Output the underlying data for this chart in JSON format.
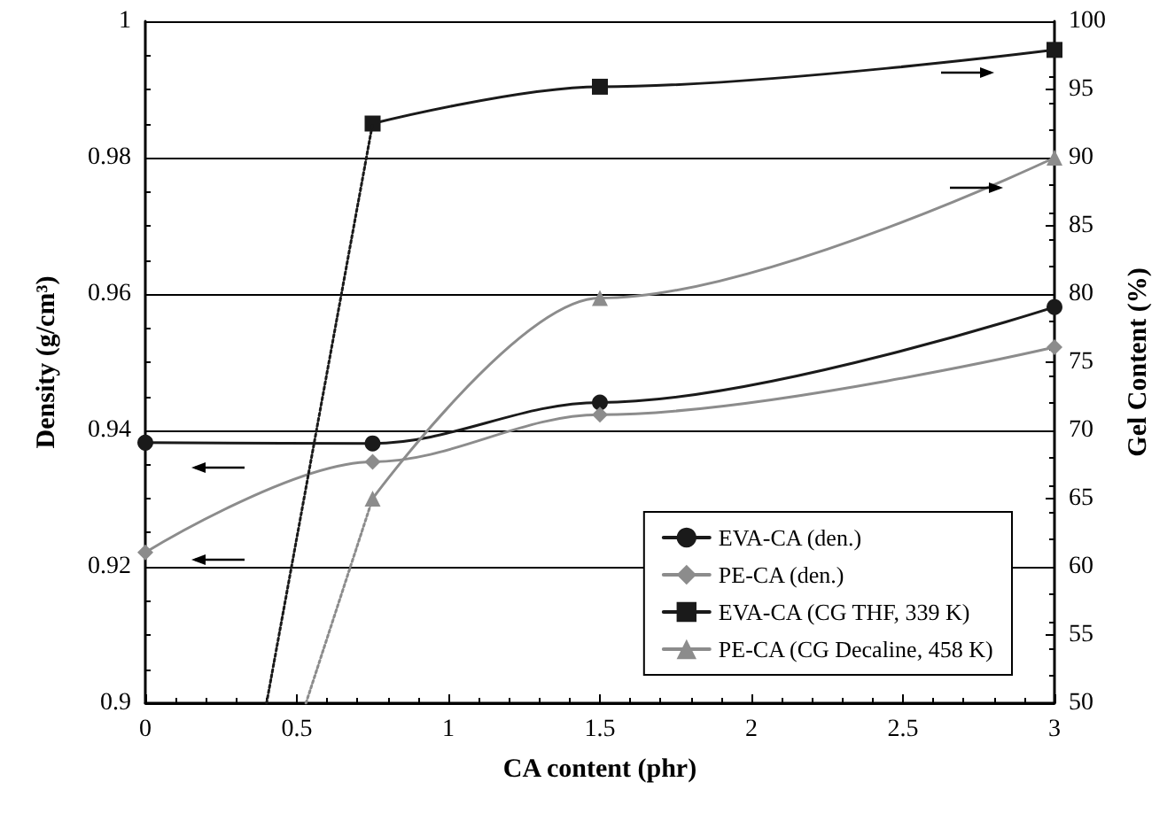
{
  "chart_data": {
    "type": "line",
    "xlabel": "CA content (phr)",
    "ylabel": "Density (g/cm³)",
    "y2label": "Gel Content (%)",
    "x": [
      0,
      0.75,
      1.5,
      3
    ],
    "series": [
      {
        "name": "EVA-CA (den.)",
        "color": "#1a1a1a",
        "marker": "circle",
        "values": [
          0.9382,
          0.9381,
          0.9441,
          0.9581
        ]
      },
      {
        "name": "PE-CA (den.)",
        "color": "#8c8c8c",
        "marker": "diamond",
        "values": [
          0.9221,
          0.9354,
          0.9423,
          0.9522
        ]
      },
      {
        "name": "EVA-CA (CG THF, 339 K)",
        "color": "#1a1a1a",
        "marker": "square",
        "axis": "y2",
        "x": [
          0.75,
          1.5,
          3
        ],
        "values": [
          92.5,
          95.2,
          97.9
        ]
      },
      {
        "name": "PE-CA (CG Decaline, 458 K)",
        "color": "#8c8c8c",
        "marker": "triangle",
        "axis": "y2",
        "x": [
          0.75,
          1.5,
          3
        ],
        "values": [
          65,
          79.7,
          90
        ]
      },
      {
        "color": "#1a1a1a",
        "marker": "none",
        "line_style": "dotted",
        "axis": "y2",
        "x": [
          0.4,
          0.75
        ],
        "values": [
          50,
          92.5
        ]
      },
      {
        "color": "#8c8c8c",
        "marker": "none",
        "line_style": "dotted",
        "axis": "y2",
        "x": [
          0.53,
          0.75
        ],
        "values": [
          50,
          65
        ]
      }
    ],
    "xlim": [
      0,
      3
    ],
    "xticks": [
      0,
      0.5,
      1,
      1.5,
      2,
      2.5,
      3
    ],
    "ylim": [
      0.9,
      1
    ],
    "yticks": [
      0.9,
      0.92,
      0.94,
      0.96,
      0.98,
      1
    ],
    "y2lim": [
      50,
      100
    ],
    "y2ticks": [
      50,
      55,
      60,
      65,
      70,
      75,
      80,
      85,
      90,
      95,
      100
    ],
    "grid": "y",
    "legend": "bottom right"
  }
}
